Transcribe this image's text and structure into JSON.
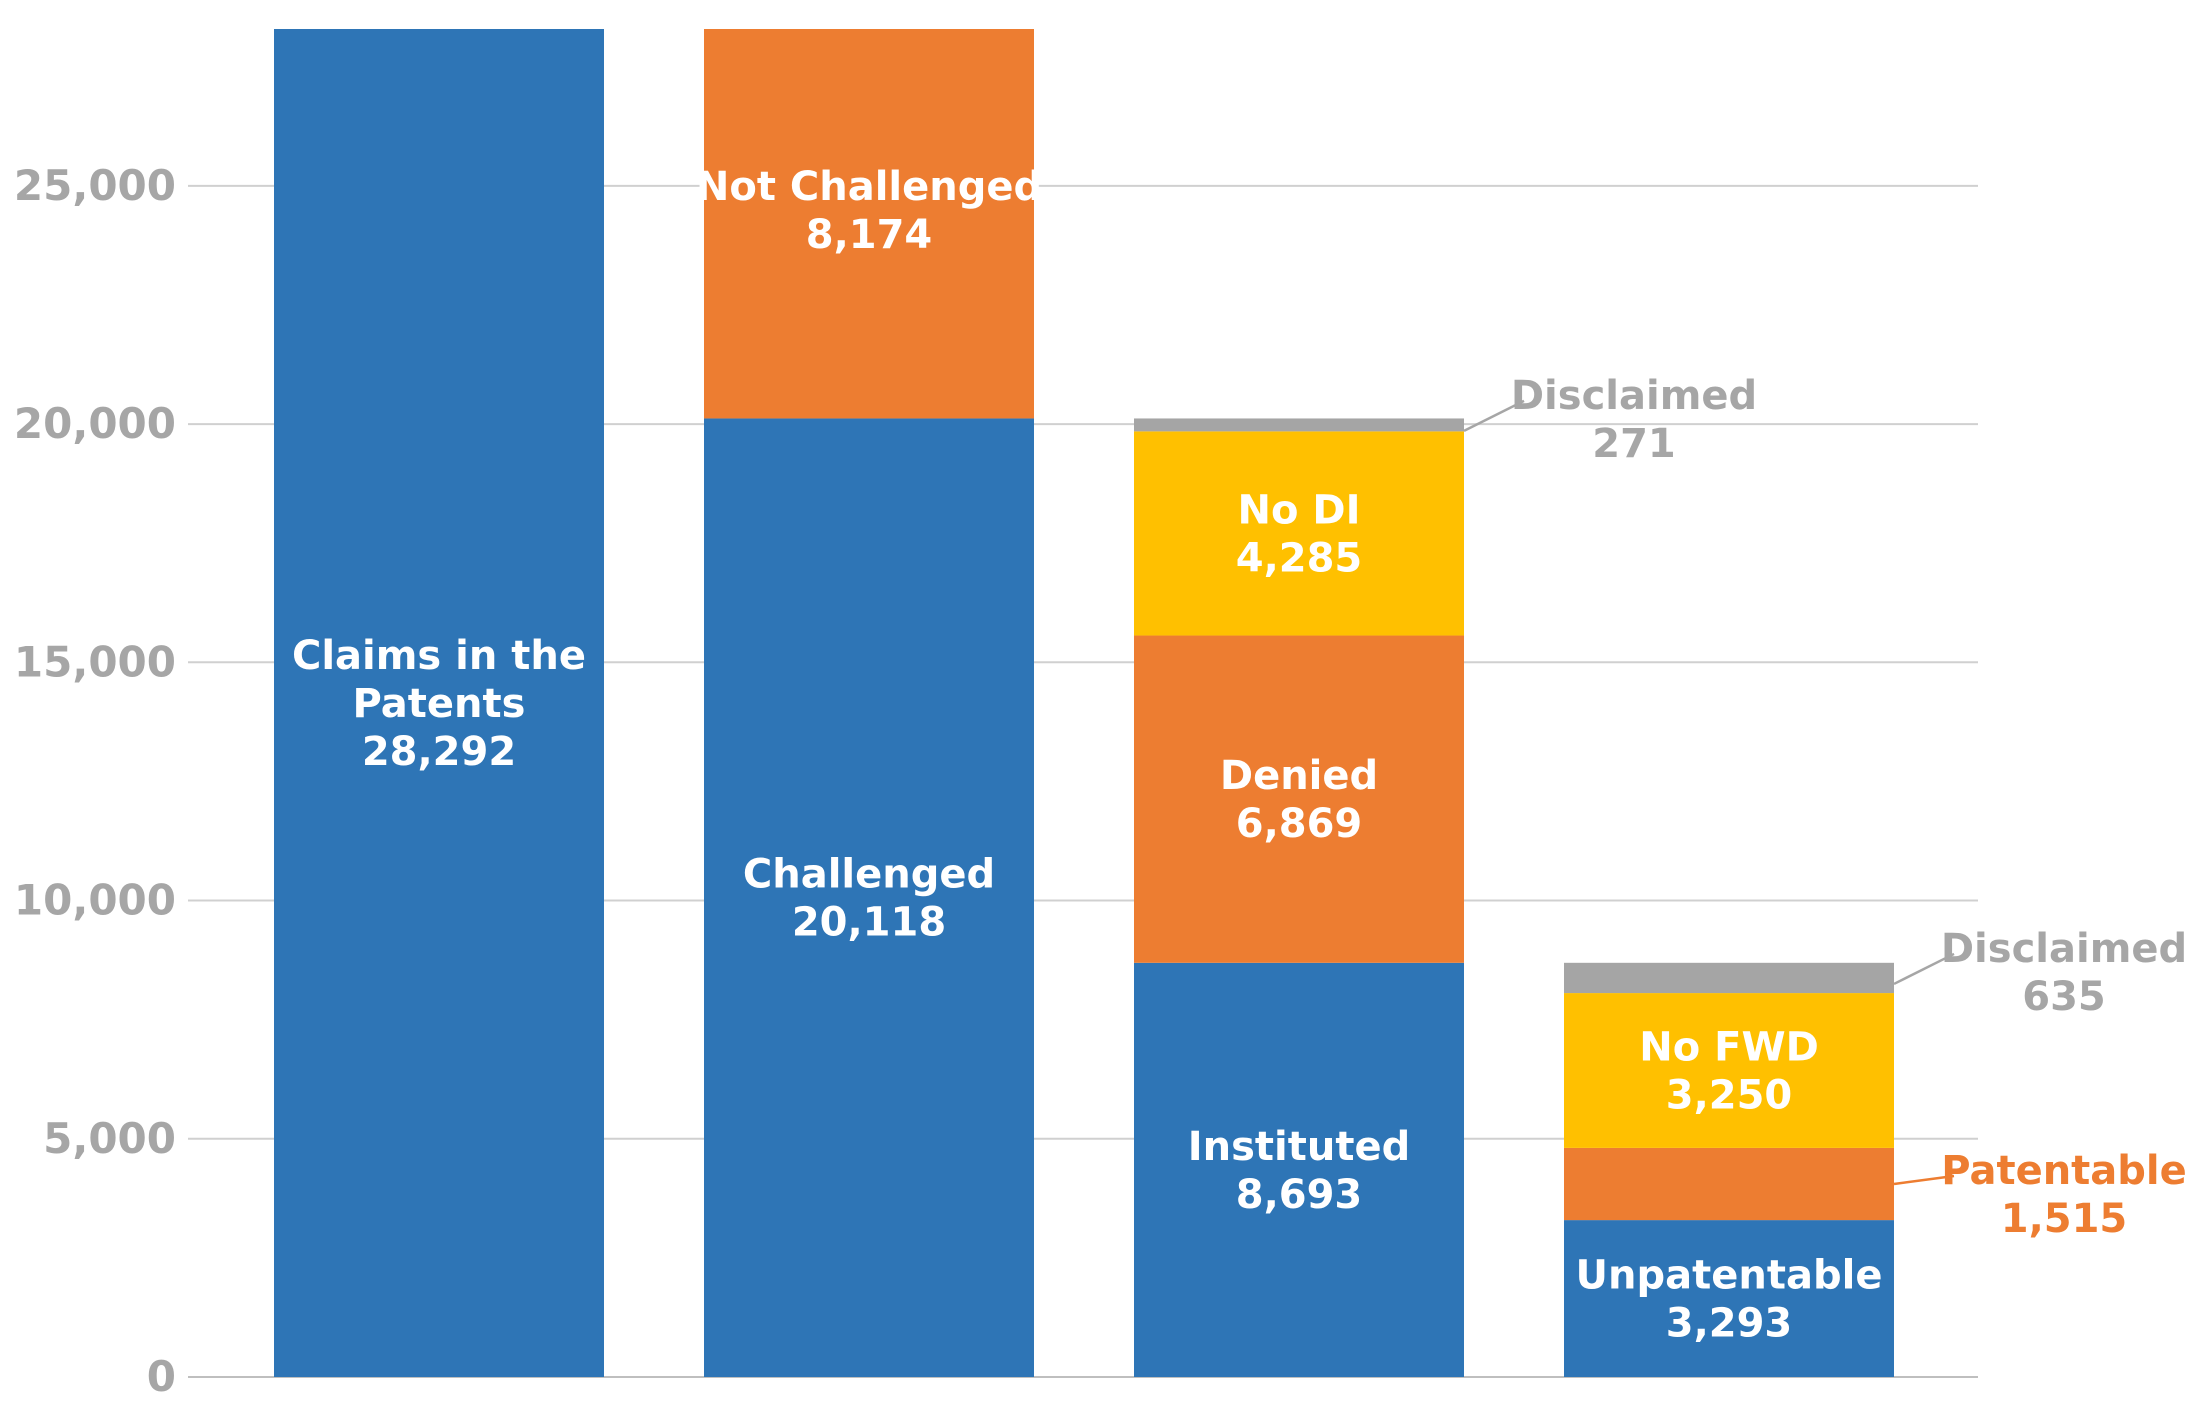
{
  "chart_data": {
    "type": "bar",
    "stacked": true,
    "ylim": [
      0,
      28292
    ],
    "yticks": [
      {
        "value": 0,
        "label": "0"
      },
      {
        "value": 5000,
        "label": "5,000"
      },
      {
        "value": 10000,
        "label": "10,000"
      },
      {
        "value": 15000,
        "label": "15,000"
      },
      {
        "value": 20000,
        "label": "20,000"
      },
      {
        "value": 25000,
        "label": "25,000"
      }
    ],
    "grid": true,
    "legend": "none",
    "colors": {
      "blue": "#2e75b6",
      "orange": "#ed7d31",
      "yellow": "#ffc000",
      "gray": "#a5a5a5"
    },
    "bars": [
      {
        "segments": [
          {
            "name": "Claims in the Patents",
            "value": 28292,
            "value_label": "28,292",
            "color": "#2e75b6",
            "label_lines": [
              "Claims in the",
              "Patents",
              "28,292"
            ],
            "label_style": "inside"
          }
        ]
      },
      {
        "segments": [
          {
            "name": "Challenged",
            "value": 20118,
            "value_label": "20,118",
            "color": "#2e75b6",
            "label_lines": [
              "Challenged",
              "20,118"
            ],
            "label_style": "inside"
          },
          {
            "name": "Not Challenged",
            "value": 8174,
            "value_label": "8,174",
            "color": "#ed7d31",
            "label_lines": [
              "Not Challenged",
              "8,174"
            ],
            "label_style": "inside-top"
          }
        ]
      },
      {
        "segments": [
          {
            "name": "Instituted",
            "value": 8693,
            "value_label": "8,693",
            "color": "#2e75b6",
            "label_lines": [
              "Instituted",
              "8,693"
            ],
            "label_style": "inside"
          },
          {
            "name": "Denied",
            "value": 6869,
            "value_label": "6,869",
            "color": "#ed7d31",
            "label_lines": [
              "Denied",
              "6,869"
            ],
            "label_style": "inside"
          },
          {
            "name": "No DI",
            "value": 4285,
            "value_label": "4,285",
            "color": "#ffc000",
            "label_lines": [
              "No DI",
              "4,285"
            ],
            "label_style": "inside"
          },
          {
            "name": "Disclaimed",
            "value": 271,
            "value_label": "271",
            "color": "#a5a5a5",
            "label_lines": [
              "Disclaimed",
              "271"
            ],
            "label_style": "callout"
          }
        ]
      },
      {
        "segments": [
          {
            "name": "Unpatentable",
            "value": 3293,
            "value_label": "3,293",
            "color": "#2e75b6",
            "label_lines": [
              "Unpatentable",
              "3,293"
            ],
            "label_style": "inside"
          },
          {
            "name": "Patentable",
            "value": 1515,
            "value_label": "1,515",
            "color": "#ed7d31",
            "label_lines": [
              "Patentable",
              "1,515"
            ],
            "label_style": "callout"
          },
          {
            "name": "No FWD",
            "value": 3250,
            "value_label": "3,250",
            "color": "#ffc000",
            "label_lines": [
              "No FWD",
              "3,250"
            ],
            "label_style": "inside"
          },
          {
            "name": "Disclaimed",
            "value": 635,
            "value_label": "635",
            "color": "#a5a5a5",
            "label_lines": [
              "Disclaimed",
              "635"
            ],
            "label_style": "callout"
          }
        ]
      }
    ]
  }
}
